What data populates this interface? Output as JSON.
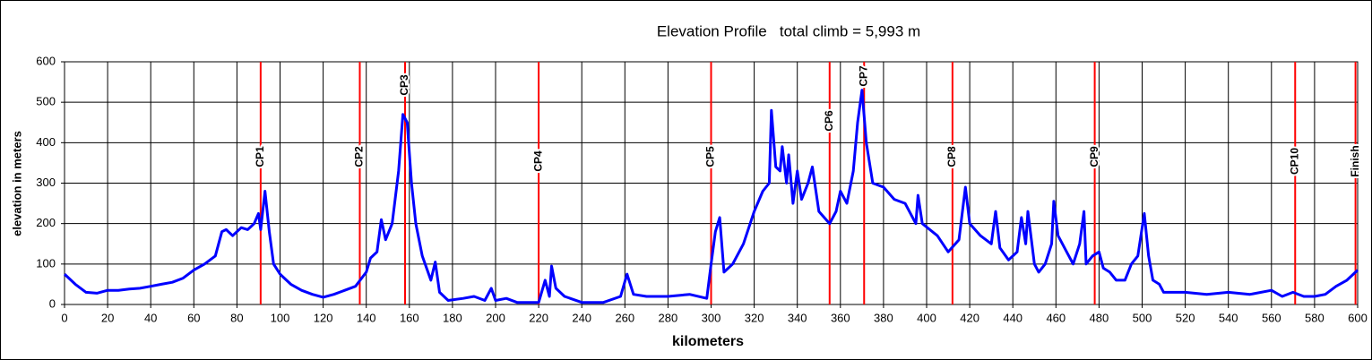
{
  "chart_data": {
    "type": "line",
    "title": "Elevation Profile   total climb = 5,993 m",
    "xlabel": "kilometers",
    "ylabel": "elevation in meters",
    "xlim": [
      0,
      600
    ],
    "ylim": [
      0,
      600
    ],
    "xticks": [
      0,
      20,
      40,
      60,
      80,
      100,
      120,
      140,
      160,
      180,
      200,
      220,
      240,
      260,
      280,
      300,
      320,
      340,
      360,
      380,
      400,
      420,
      440,
      460,
      480,
      500,
      520,
      540,
      560,
      580,
      600
    ],
    "yticks": [
      0,
      100,
      200,
      300,
      400,
      500,
      600
    ],
    "grid": true,
    "checkpoint_color": "#ff0000",
    "checkpoints": [
      {
        "label": "CP1",
        "x": 91
      },
      {
        "label": "CP2",
        "x": 137
      },
      {
        "label": "CP3",
        "x": 158
      },
      {
        "label": "CP4",
        "x": 220
      },
      {
        "label": "CP5",
        "x": 300
      },
      {
        "label": "CP6",
        "x": 355
      },
      {
        "label": "CP7",
        "x": 371
      },
      {
        "label": "CP8",
        "x": 412
      },
      {
        "label": "CP9",
        "x": 478
      },
      {
        "label": "CP10",
        "x": 571
      },
      {
        "label": "Finish",
        "x": 599
      }
    ],
    "series": [
      {
        "color": "#0000ff",
        "x": [
          0,
          5,
          10,
          15,
          20,
          25,
          30,
          35,
          40,
          45,
          50,
          55,
          60,
          65,
          70,
          73,
          75,
          78,
          82,
          85,
          88,
          90,
          91,
          93,
          95,
          97,
          100,
          105,
          110,
          115,
          120,
          125,
          130,
          135,
          140,
          142,
          145,
          147,
          149,
          152,
          155,
          157,
          159,
          161,
          163,
          166,
          170,
          172,
          174,
          178,
          185,
          190,
          195,
          198,
          200,
          205,
          210,
          215,
          220,
          223,
          225,
          226,
          228,
          232,
          240,
          250,
          258,
          261,
          264,
          270,
          280,
          290,
          298,
          300,
          302,
          304,
          306,
          310,
          315,
          320,
          324,
          327,
          328,
          330,
          332,
          333,
          335,
          336,
          338,
          340,
          342,
          345,
          347,
          350,
          355,
          358,
          360,
          363,
          366,
          368,
          370,
          372,
          375,
          380,
          385,
          390,
          395,
          396,
          398,
          405,
          410,
          415,
          418,
          420,
          425,
          430,
          432,
          434,
          438,
          442,
          444,
          446,
          447,
          450,
          452,
          455,
          458,
          459,
          461,
          465,
          468,
          471,
          473,
          474,
          477,
          480,
          482,
          485,
          488,
          492,
          495,
          498,
          501,
          503,
          505,
          508,
          510,
          520,
          530,
          540,
          550,
          560,
          565,
          570,
          575,
          580,
          585,
          590,
          595,
          600
        ],
        "values": [
          75,
          50,
          30,
          28,
          35,
          35,
          38,
          40,
          45,
          50,
          55,
          65,
          85,
          100,
          120,
          180,
          185,
          170,
          190,
          185,
          200,
          225,
          185,
          280,
          180,
          100,
          75,
          50,
          35,
          25,
          18,
          25,
          35,
          45,
          80,
          115,
          130,
          210,
          160,
          200,
          330,
          470,
          450,
          300,
          200,
          120,
          60,
          105,
          30,
          10,
          15,
          20,
          10,
          40,
          10,
          15,
          5,
          5,
          5,
          60,
          20,
          95,
          40,
          20,
          5,
          5,
          20,
          75,
          25,
          20,
          20,
          25,
          15,
          100,
          180,
          215,
          80,
          100,
          150,
          230,
          280,
          300,
          480,
          340,
          330,
          390,
          300,
          370,
          250,
          330,
          260,
          300,
          340,
          230,
          200,
          230,
          280,
          250,
          330,
          450,
          530,
          400,
          300,
          290,
          260,
          250,
          200,
          270,
          200,
          170,
          130,
          160,
          290,
          200,
          170,
          150,
          230,
          140,
          110,
          130,
          215,
          150,
          230,
          100,
          80,
          100,
          150,
          255,
          170,
          130,
          100,
          150,
          230,
          100,
          120,
          130,
          90,
          80,
          60,
          60,
          100,
          120,
          225,
          120,
          60,
          50,
          30,
          30,
          25,
          30,
          25,
          35,
          20,
          30,
          20,
          20,
          25,
          45,
          60,
          85
        ]
      }
    ]
  }
}
